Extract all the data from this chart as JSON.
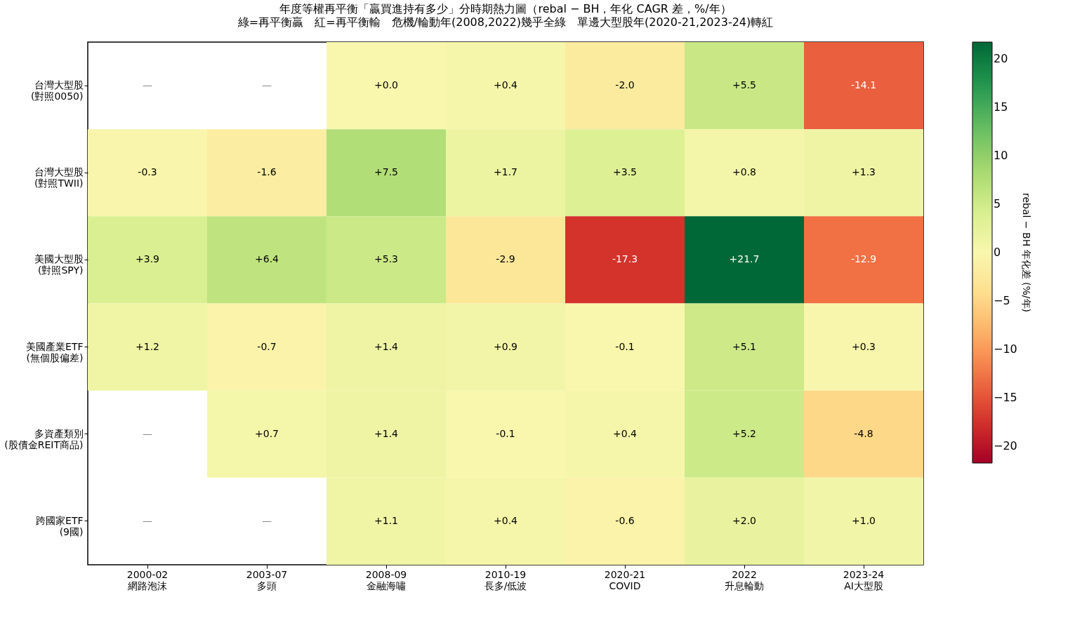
{
  "chart_data": {
    "type": "heatmap",
    "title": "年度等權再平衡「贏買進持有多少」分時期熱力圖（rebal − BH，年化 CAGR 差，%/年）",
    "subtitle": "綠=再平衡贏　紅=再平衡輸　危機/輪動年(2008,2022)幾乎全綠　單邊大型股年(2020-21,2023-24)轉紅",
    "categories": [
      "2000-02\n網路泡沫",
      "2003-07\n多頭",
      "2008-09\n金融海嘯",
      "2010-19\n長多/低波",
      "2020-21\nCOVID",
      "2022\n升息輪動",
      "2023-24\nAI大型股"
    ],
    "y_categories": [
      "台灣大型股\n(對照0050)",
      "台灣大型股\n(對照TWII)",
      "美國大型股\n(對照SPY)",
      "美國產業ETF\n(無個股偏差)",
      "多資產類別\n(股債金REIT商品)",
      "跨國家ETF\n(9國)"
    ],
    "cells": [
      [
        null,
        null,
        0.0,
        0.4,
        -2.0,
        5.5,
        -14.1
      ],
      [
        -0.3,
        -1.6,
        7.5,
        1.7,
        3.5,
        0.8,
        1.3
      ],
      [
        3.9,
        6.4,
        5.3,
        -2.9,
        -17.3,
        21.7,
        -12.9
      ],
      [
        1.2,
        -0.7,
        1.4,
        0.9,
        -0.1,
        5.1,
        0.3
      ],
      [
        null,
        0.7,
        1.4,
        -0.1,
        0.4,
        5.2,
        -4.8
      ],
      [
        null,
        null,
        1.1,
        0.4,
        -0.6,
        2.0,
        1.0
      ]
    ],
    "cell_labels": [
      [
        "—",
        "—",
        "+0.0",
        "+0.4",
        "-2.0",
        "+5.5",
        "-14.1"
      ],
      [
        "-0.3",
        "-1.6",
        "+7.5",
        "+1.7",
        "+3.5",
        "+0.8",
        "+1.3"
      ],
      [
        "+3.9",
        "+6.4",
        "+5.3",
        "-2.9",
        "-17.3",
        "+21.7",
        "-12.9"
      ],
      [
        "+1.2",
        "-0.7",
        "+1.4",
        "+0.9",
        "-0.1",
        "+5.1",
        "+0.3"
      ],
      [
        "—",
        "+0.7",
        "+1.4",
        "-0.1",
        "+0.4",
        "+5.2",
        "-4.8"
      ],
      [
        "—",
        "—",
        "+1.1",
        "+0.4",
        "-0.6",
        "+2.0",
        "+1.0"
      ]
    ],
    "clabel": "rebal − BH 年化差 (%/年)",
    "clim": [
      -21.7,
      21.7
    ],
    "cticks": [
      -20,
      -15,
      -10,
      -5,
      0,
      5,
      10,
      15,
      20
    ]
  }
}
